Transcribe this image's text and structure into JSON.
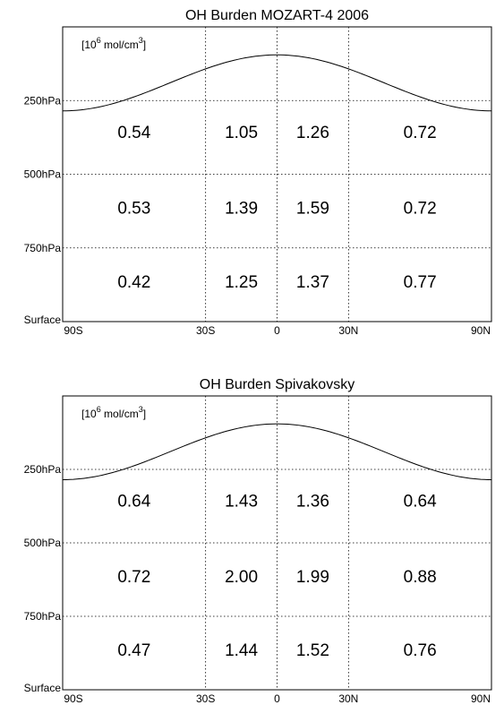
{
  "chart_data": [
    {
      "type": "table",
      "title": "OH Burden MOZART-4 2006",
      "unit_label": {
        "prefix": "[10",
        "exponent": "6",
        "middle": " mol/cm",
        "exponent2": "3",
        "suffix": "]"
      },
      "x_ticks": [
        {
          "value": -90,
          "label": "90S"
        },
        {
          "value": -30,
          "label": "30S"
        },
        {
          "value": 0,
          "label": "0"
        },
        {
          "value": 30,
          "label": "30N"
        },
        {
          "value": 90,
          "label": "90N"
        }
      ],
      "y_ticks": [
        {
          "value": 0,
          "label": "Surface"
        },
        {
          "value": 750,
          "label": "750hPa"
        },
        {
          "value": 500,
          "label": "500hPa"
        },
        {
          "value": 250,
          "label": "250hPa"
        }
      ],
      "xlim": [
        -90,
        90
      ],
      "grid": true,
      "tropopause": {
        "equator_hPa": 95,
        "pole_hPa": 285
      },
      "rows": [
        {
          "pressure_range": "250hPa-tropopause",
          "values": [
            0.54,
            1.05,
            1.26,
            0.72
          ]
        },
        {
          "pressure_range": "500-250hPa",
          "values": [
            0.53,
            1.39,
            1.59,
            0.72
          ]
        },
        {
          "pressure_range": "750-500hPa",
          "values": [
            0.42,
            1.25,
            1.37,
            0.77
          ]
        }
      ],
      "value_labels": [
        [
          "0.54",
          "1.05",
          "1.26",
          "0.72"
        ],
        [
          "0.53",
          "1.39",
          "1.59",
          "0.72"
        ],
        [
          "0.42",
          "1.25",
          "1.37",
          "0.77"
        ]
      ]
    },
    {
      "type": "table",
      "title": "OH Burden Spivakovsky",
      "unit_label": {
        "prefix": "[10",
        "exponent": "6",
        "middle": " mol/cm",
        "exponent2": "3",
        "suffix": "]"
      },
      "x_ticks": [
        {
          "value": -90,
          "label": "90S"
        },
        {
          "value": -30,
          "label": "30S"
        },
        {
          "value": 0,
          "label": "0"
        },
        {
          "value": 30,
          "label": "30N"
        },
        {
          "value": 90,
          "label": "90N"
        }
      ],
      "y_ticks": [
        {
          "value": 0,
          "label": "Surface"
        },
        {
          "value": 750,
          "label": "750hPa"
        },
        {
          "value": 500,
          "label": "500hPa"
        },
        {
          "value": 250,
          "label": "250hPa"
        }
      ],
      "xlim": [
        -90,
        90
      ],
      "grid": true,
      "tropopause": {
        "equator_hPa": 95,
        "pole_hPa": 285
      },
      "rows": [
        {
          "pressure_range": "250hPa-tropopause",
          "values": [
            0.64,
            1.43,
            1.36,
            0.64
          ]
        },
        {
          "pressure_range": "500-250hPa",
          "values": [
            0.72,
            2.0,
            1.99,
            0.88
          ]
        },
        {
          "pressure_range": "750-500hPa",
          "values": [
            0.47,
            1.44,
            1.52,
            0.76
          ]
        }
      ],
      "value_labels": [
        [
          "0.64",
          "1.43",
          "1.36",
          "0.64"
        ],
        [
          "0.72",
          "2.00",
          "1.99",
          "0.88"
        ],
        [
          "0.47",
          "1.44",
          "1.52",
          "0.76"
        ]
      ]
    }
  ]
}
